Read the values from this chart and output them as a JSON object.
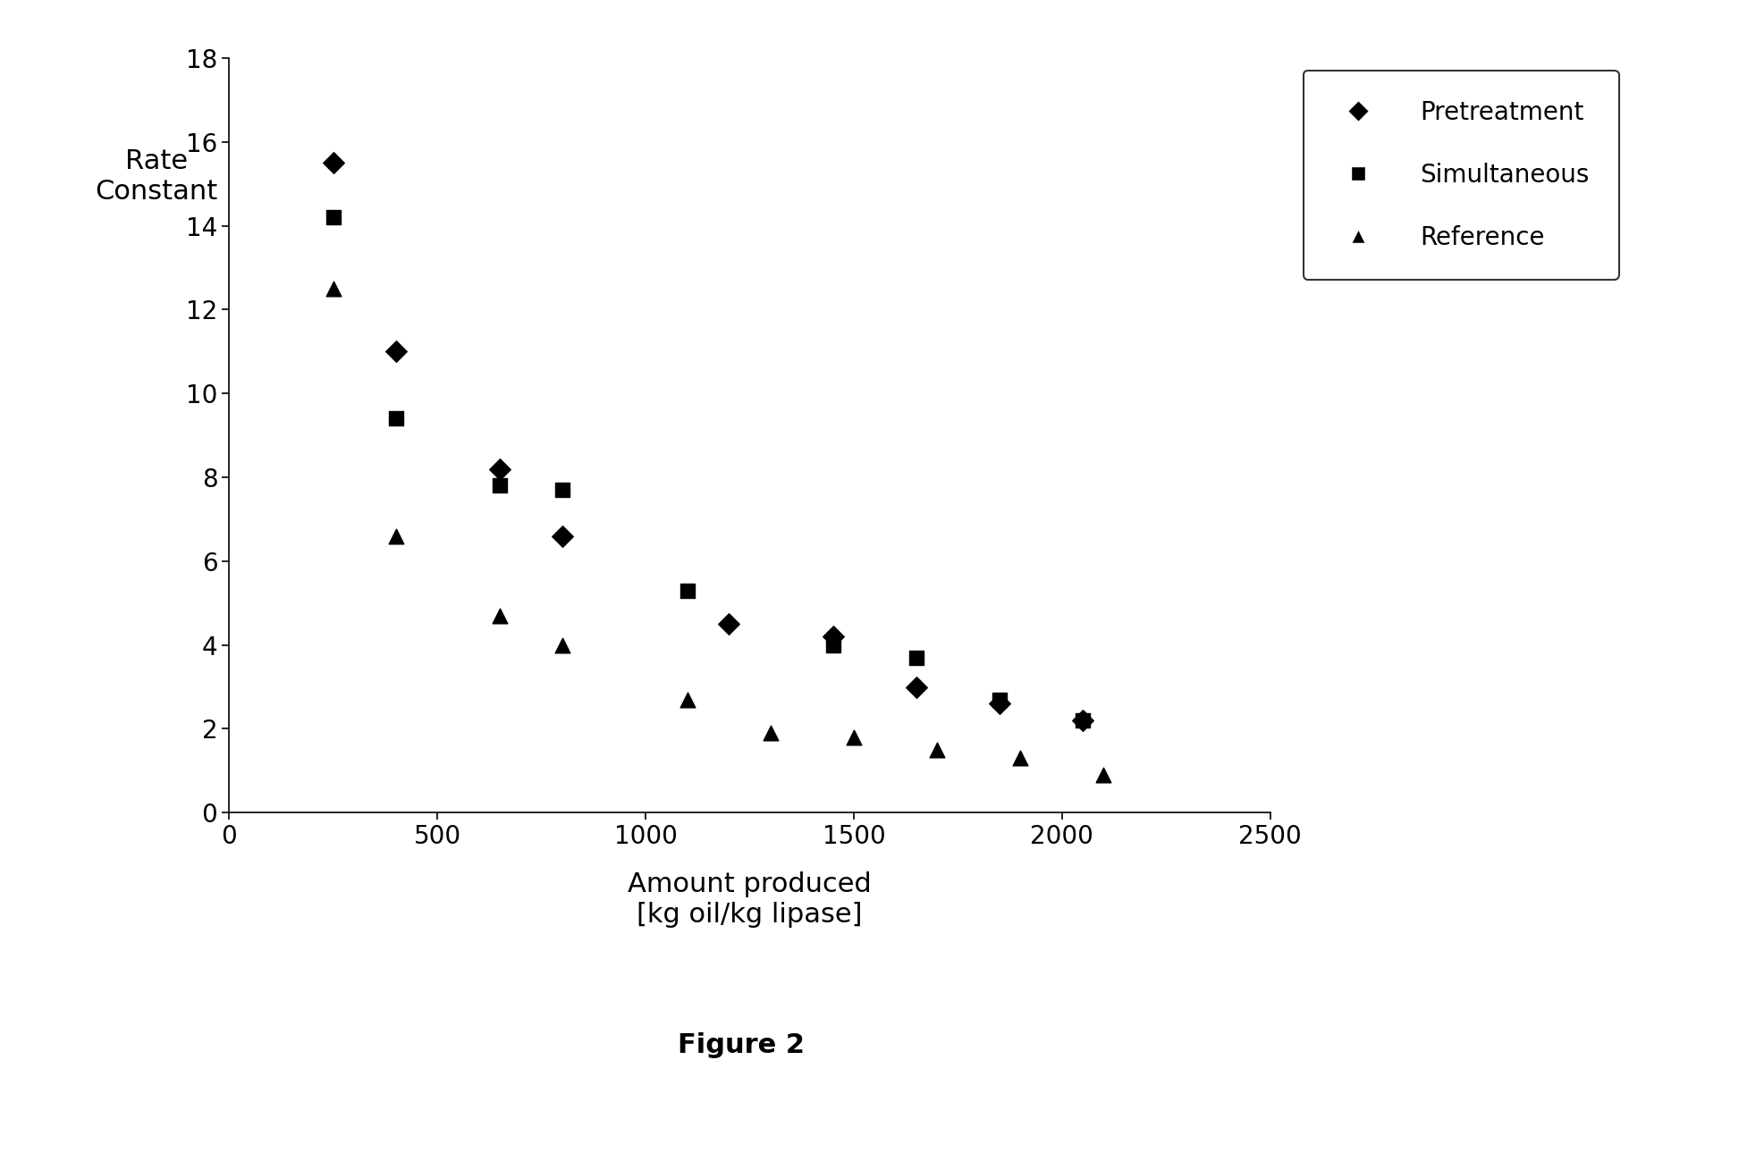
{
  "pretreatment_x": [
    250,
    400,
    650,
    800,
    1200,
    1450,
    1650,
    1850,
    2050
  ],
  "pretreatment_y": [
    15.5,
    11.0,
    8.2,
    6.6,
    4.5,
    4.2,
    3.0,
    2.6,
    2.2
  ],
  "simultaneous_x": [
    250,
    400,
    650,
    800,
    1100,
    1450,
    1650,
    1850,
    2050
  ],
  "simultaneous_y": [
    14.2,
    9.4,
    7.8,
    7.7,
    5.3,
    4.0,
    3.7,
    2.7,
    2.2
  ],
  "reference_x": [
    250,
    400,
    650,
    800,
    1100,
    1300,
    1500,
    1700,
    1900,
    2100
  ],
  "reference_y": [
    12.5,
    6.6,
    4.7,
    4.0,
    2.7,
    1.9,
    1.8,
    1.5,
    1.3,
    0.9
  ],
  "xlim": [
    0,
    2500
  ],
  "ylim": [
    0,
    18
  ],
  "xticks": [
    0,
    500,
    1000,
    1500,
    2000,
    2500
  ],
  "yticks": [
    0,
    2,
    4,
    6,
    8,
    10,
    12,
    14,
    16,
    18
  ],
  "xlabel_line1": "Amount produced",
  "xlabel_line2": "[kg oil/kg lipase]",
  "ylabel_line1": "Rate",
  "ylabel_line2": "Constant",
  "caption": "Figure 2",
  "marker_color": "#000000",
  "bg_color": "#ffffff",
  "legend_labels": [
    "Pretreatment",
    "Simultaneous",
    "Reference"
  ],
  "marker_size": 12,
  "tick_fontsize": 20,
  "label_fontsize": 22,
  "legend_fontsize": 20,
  "caption_fontsize": 22
}
